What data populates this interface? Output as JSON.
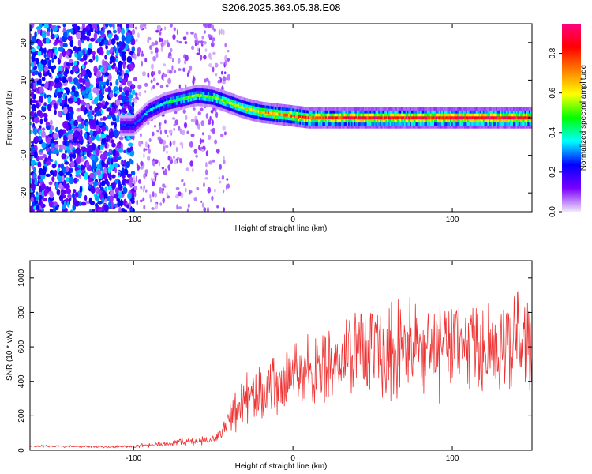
{
  "figure_title": "S206.2025.363.05.38.E08",
  "chart_data": [
    {
      "type": "heatmap",
      "title": "S206.2025.363.05.38.E08",
      "xlabel": "Height of straight line (km)",
      "ylabel": "Frequency (Hz)",
      "xlim": [
        -165,
        150
      ],
      "ylim": [
        -25,
        25
      ],
      "xticks": [
        -100,
        0,
        100
      ],
      "xtick_labels": [
        "-100",
        "0",
        "100"
      ],
      "yticks": [
        -20,
        -10,
        0,
        10,
        20
      ],
      "ytick_labels": [
        "-20",
        "-10",
        "0",
        "10",
        "20"
      ],
      "colorbar": {
        "label": "Normalized spectral amplitude",
        "range": [
          0,
          0.95
        ],
        "ticks": [
          0.0,
          0.2,
          0.4,
          0.6,
          0.8
        ],
        "tick_labels": [
          "0.0",
          "0.2",
          "0.4",
          "0.6",
          "0.8"
        ],
        "colors": [
          "#f2e8f8",
          "#7a00ff",
          "#0000ff",
          "#00ffff",
          "#00ff00",
          "#ffff00",
          "#ff8000",
          "#ff0000",
          "#ff0080"
        ]
      },
      "ridge": {
        "x": [
          -100,
          -90,
          -80,
          -70,
          -60,
          -50,
          -40,
          -30,
          -20,
          -10,
          0,
          10,
          20,
          40,
          60,
          80,
          100,
          120,
          150
        ],
        "freq": [
          -2,
          2,
          4,
          5,
          6,
          5.5,
          4,
          2.5,
          1.5,
          1,
          0.5,
          0,
          0,
          0,
          0,
          0,
          0,
          0,
          0
        ],
        "amplitude": [
          0.25,
          0.35,
          0.4,
          0.45,
          0.5,
          0.5,
          0.55,
          0.6,
          0.65,
          0.7,
          0.75,
          0.8,
          0.8,
          0.85,
          0.85,
          0.85,
          0.9,
          0.9,
          0.85
        ]
      },
      "noise_region": {
        "x_range": [
          -165,
          -100
        ],
        "freq_range": [
          -25,
          25
        ]
      }
    },
    {
      "type": "line",
      "xlabel": "Height of straight line (km)",
      "ylabel": "SNR (10 * v/v)",
      "xlim": [
        -165,
        150
      ],
      "ylim": [
        0,
        1100
      ],
      "xticks": [
        -100,
        0,
        100
      ],
      "xtick_labels": [
        "-100",
        "0",
        "100"
      ],
      "yticks": [
        0,
        200,
        400,
        600,
        800,
        1000
      ],
      "ytick_labels": [
        "0",
        "200",
        "400",
        "600",
        "800",
        "1000"
      ],
      "color": "#ee3333",
      "series": [
        {
          "name": "SNR",
          "x": [
            -165,
            -140,
            -120,
            -100,
            -80,
            -60,
            -50,
            -45,
            -40,
            -35,
            -30,
            -25,
            -20,
            -15,
            -10,
            -5,
            0,
            10,
            20,
            30,
            40,
            50,
            60,
            70,
            80,
            90,
            100,
            110,
            120,
            130,
            140,
            150
          ],
          "mean": [
            25,
            22,
            20,
            22,
            40,
            55,
            60,
            100,
            180,
            250,
            290,
            320,
            340,
            360,
            380,
            400,
            430,
            460,
            500,
            530,
            550,
            560,
            570,
            575,
            580,
            585,
            590,
            595,
            600,
            600,
            620,
            630
          ],
          "spread": [
            8,
            8,
            8,
            10,
            20,
            30,
            30,
            60,
            110,
            170,
            200,
            200,
            200,
            210,
            210,
            220,
            230,
            240,
            260,
            280,
            300,
            320,
            330,
            330,
            330,
            330,
            320,
            320,
            320,
            320,
            340,
            360
          ]
        }
      ]
    }
  ]
}
